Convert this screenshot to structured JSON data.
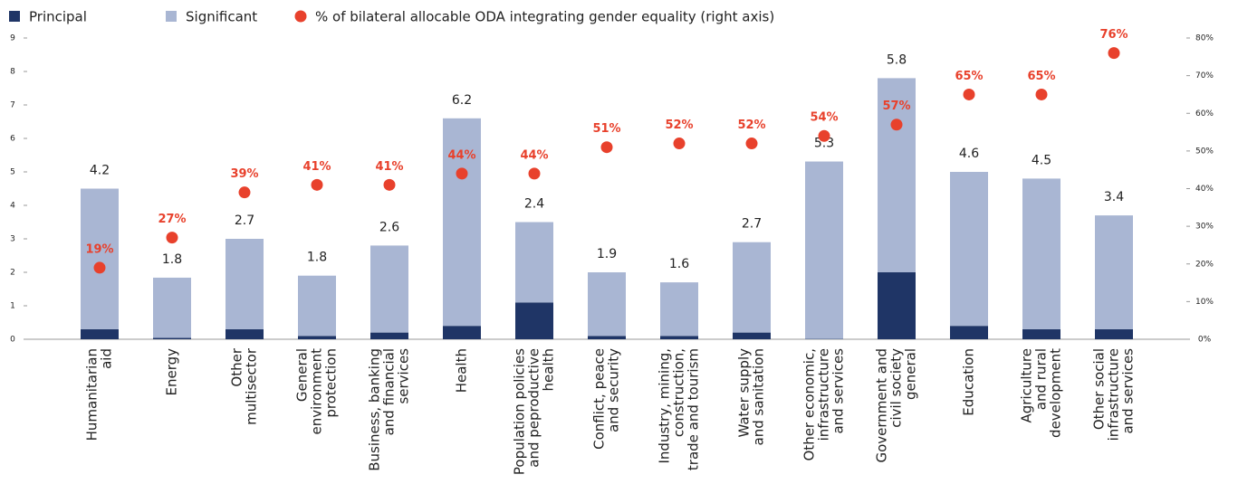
{
  "chart_data": {
    "type": "bar",
    "categories": [
      [
        "Humanitarian",
        "aid"
      ],
      [
        "Energy"
      ],
      [
        "Other",
        "multisector"
      ],
      [
        "General",
        "environment",
        "protection"
      ],
      [
        "Business, banking",
        "and financial",
        "services"
      ],
      [
        "Health"
      ],
      [
        "Population policies",
        "and peproductive",
        "health"
      ],
      [
        "Conflict, peace",
        "and security"
      ],
      [
        "Industry, mining,",
        "construction,",
        "trade and tourism"
      ],
      [
        "Water supply",
        "and sanitation"
      ],
      [
        "Other economic,",
        "infrastructure",
        "and services"
      ],
      [
        "Government and",
        "civil society",
        "general"
      ],
      [
        "Education"
      ],
      [
        "Agriculture",
        "and rural",
        "development"
      ],
      [
        "Other social",
        "infrastructure",
        "and services"
      ]
    ],
    "series": [
      {
        "name": "Principal",
        "color": "#1f3566",
        "values": [
          0.3,
          0.04,
          0.3,
          0.1,
          0.2,
          0.4,
          1.1,
          0.1,
          0.1,
          0.2,
          0.01,
          2,
          0.4,
          0.3,
          0.3
        ]
      },
      {
        "name": "Significant",
        "color": "#a9b6d3",
        "values": [
          4.2,
          1.8,
          2.7,
          1.8,
          2.6,
          6.2,
          2.4,
          1.9,
          1.6,
          2.7,
          5.3,
          5.8,
          4.6,
          4.5,
          3.4
        ]
      },
      {
        "name": "% of bilateral allocable ODA integrating gender equality (right axis)",
        "color": "#e8412c",
        "type": "scatter",
        "axis": "y2",
        "values": [
          19,
          27,
          39,
          41,
          41,
          44,
          44,
          51,
          52,
          52,
          54,
          57,
          65,
          65,
          76
        ],
        "value_labels": [
          "19%",
          "27%",
          "39%",
          "41%",
          "41%",
          "44%",
          "44%",
          "51%",
          "52%",
          "52%",
          "54%",
          "57%",
          "65%",
          "65%",
          "76%"
        ]
      }
    ],
    "ylim": [
      0,
      9
    ],
    "yticks": [
      0,
      1,
      2,
      3,
      4,
      5,
      6,
      7,
      8,
      9
    ],
    "y2lim": [
      0,
      80
    ],
    "y2ticks": [
      {
        "value": 0,
        "label": "0%"
      },
      {
        "value": 10,
        "label": "10%"
      },
      {
        "value": 20,
        "label": "20%"
      },
      {
        "value": 30,
        "label": "30%"
      },
      {
        "value": 40,
        "label": "40%"
      },
      {
        "value": 50,
        "label": "50%"
      },
      {
        "value": 60,
        "label": "60%"
      },
      {
        "value": 70,
        "label": "70%"
      },
      {
        "value": 80,
        "label": "80%"
      }
    ],
    "stacked": true
  }
}
